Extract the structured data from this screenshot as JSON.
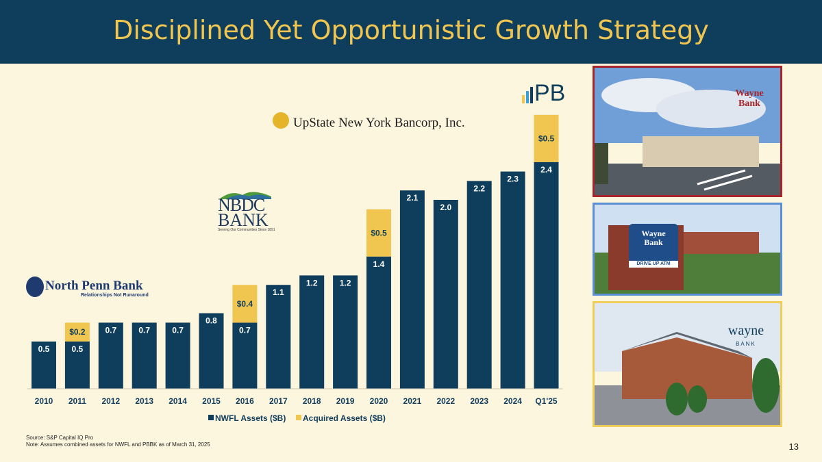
{
  "title": "Disciplined Yet Opportunistic Growth Strategy",
  "logos": {
    "upstate": "UpState New York Bancorp, Inc.",
    "nbdc_line1": "NBDC",
    "nbdc_line2": "BANK",
    "nbdc_tagline": "Serving Our Communities Since 1891",
    "north_penn": "North Penn Bank",
    "north_penn_tagline": "Relationships Not Runaround",
    "pb": "PB"
  },
  "photos": {
    "wayne_logo_line1": "Wayne",
    "wayne_logo_line2": "Bank",
    "sign_line1": "Wayne",
    "sign_line2": "Bank",
    "sign_atm": "DRIVE UP ATM",
    "wayne_lower": "wayne",
    "wayne_lower_sub": "BANK"
  },
  "chart_data": {
    "type": "bar",
    "stacked": true,
    "categories": [
      "2010",
      "2011",
      "2012",
      "2013",
      "2014",
      "2015",
      "2016",
      "2017",
      "2018",
      "2019",
      "2020",
      "2021",
      "2022",
      "2023",
      "2024",
      "Q1'25"
    ],
    "series": [
      {
        "name": "NWFL Assets ($B)",
        "color": "#0f3d5c",
        "values": [
          0.5,
          0.5,
          0.7,
          0.7,
          0.7,
          0.8,
          0.7,
          1.1,
          1.2,
          1.2,
          1.4,
          2.1,
          2.0,
          2.2,
          2.3,
          2.4
        ],
        "labels": [
          "0.5",
          "0.5",
          "0.7",
          "0.7",
          "0.7",
          "0.8",
          "0.7",
          "1.1",
          "1.2",
          "1.2",
          "1.4",
          "2.1",
          "2.0",
          "2.2",
          "2.3",
          "2.4"
        ]
      },
      {
        "name": "Acquired Assets ($B)",
        "color": "#f1c650",
        "values": [
          0,
          0.2,
          0,
          0,
          0,
          0,
          0.4,
          0,
          0,
          0,
          0.5,
          0,
          0,
          0,
          0,
          0.5
        ],
        "labels": [
          "",
          "$0.2",
          "",
          "",
          "",
          "",
          "$0.4",
          "",
          "",
          "",
          "$0.5",
          "",
          "",
          "",
          "",
          "$0.5"
        ]
      }
    ],
    "grid": false,
    "legend_position": "bottom"
  },
  "footnotes": {
    "source": "Source: S&P Capital IQ Pro",
    "note": "Note:    Assumes combined assets for NWFL and PBBK as of March 31, 2025"
  },
  "page_number": "13"
}
